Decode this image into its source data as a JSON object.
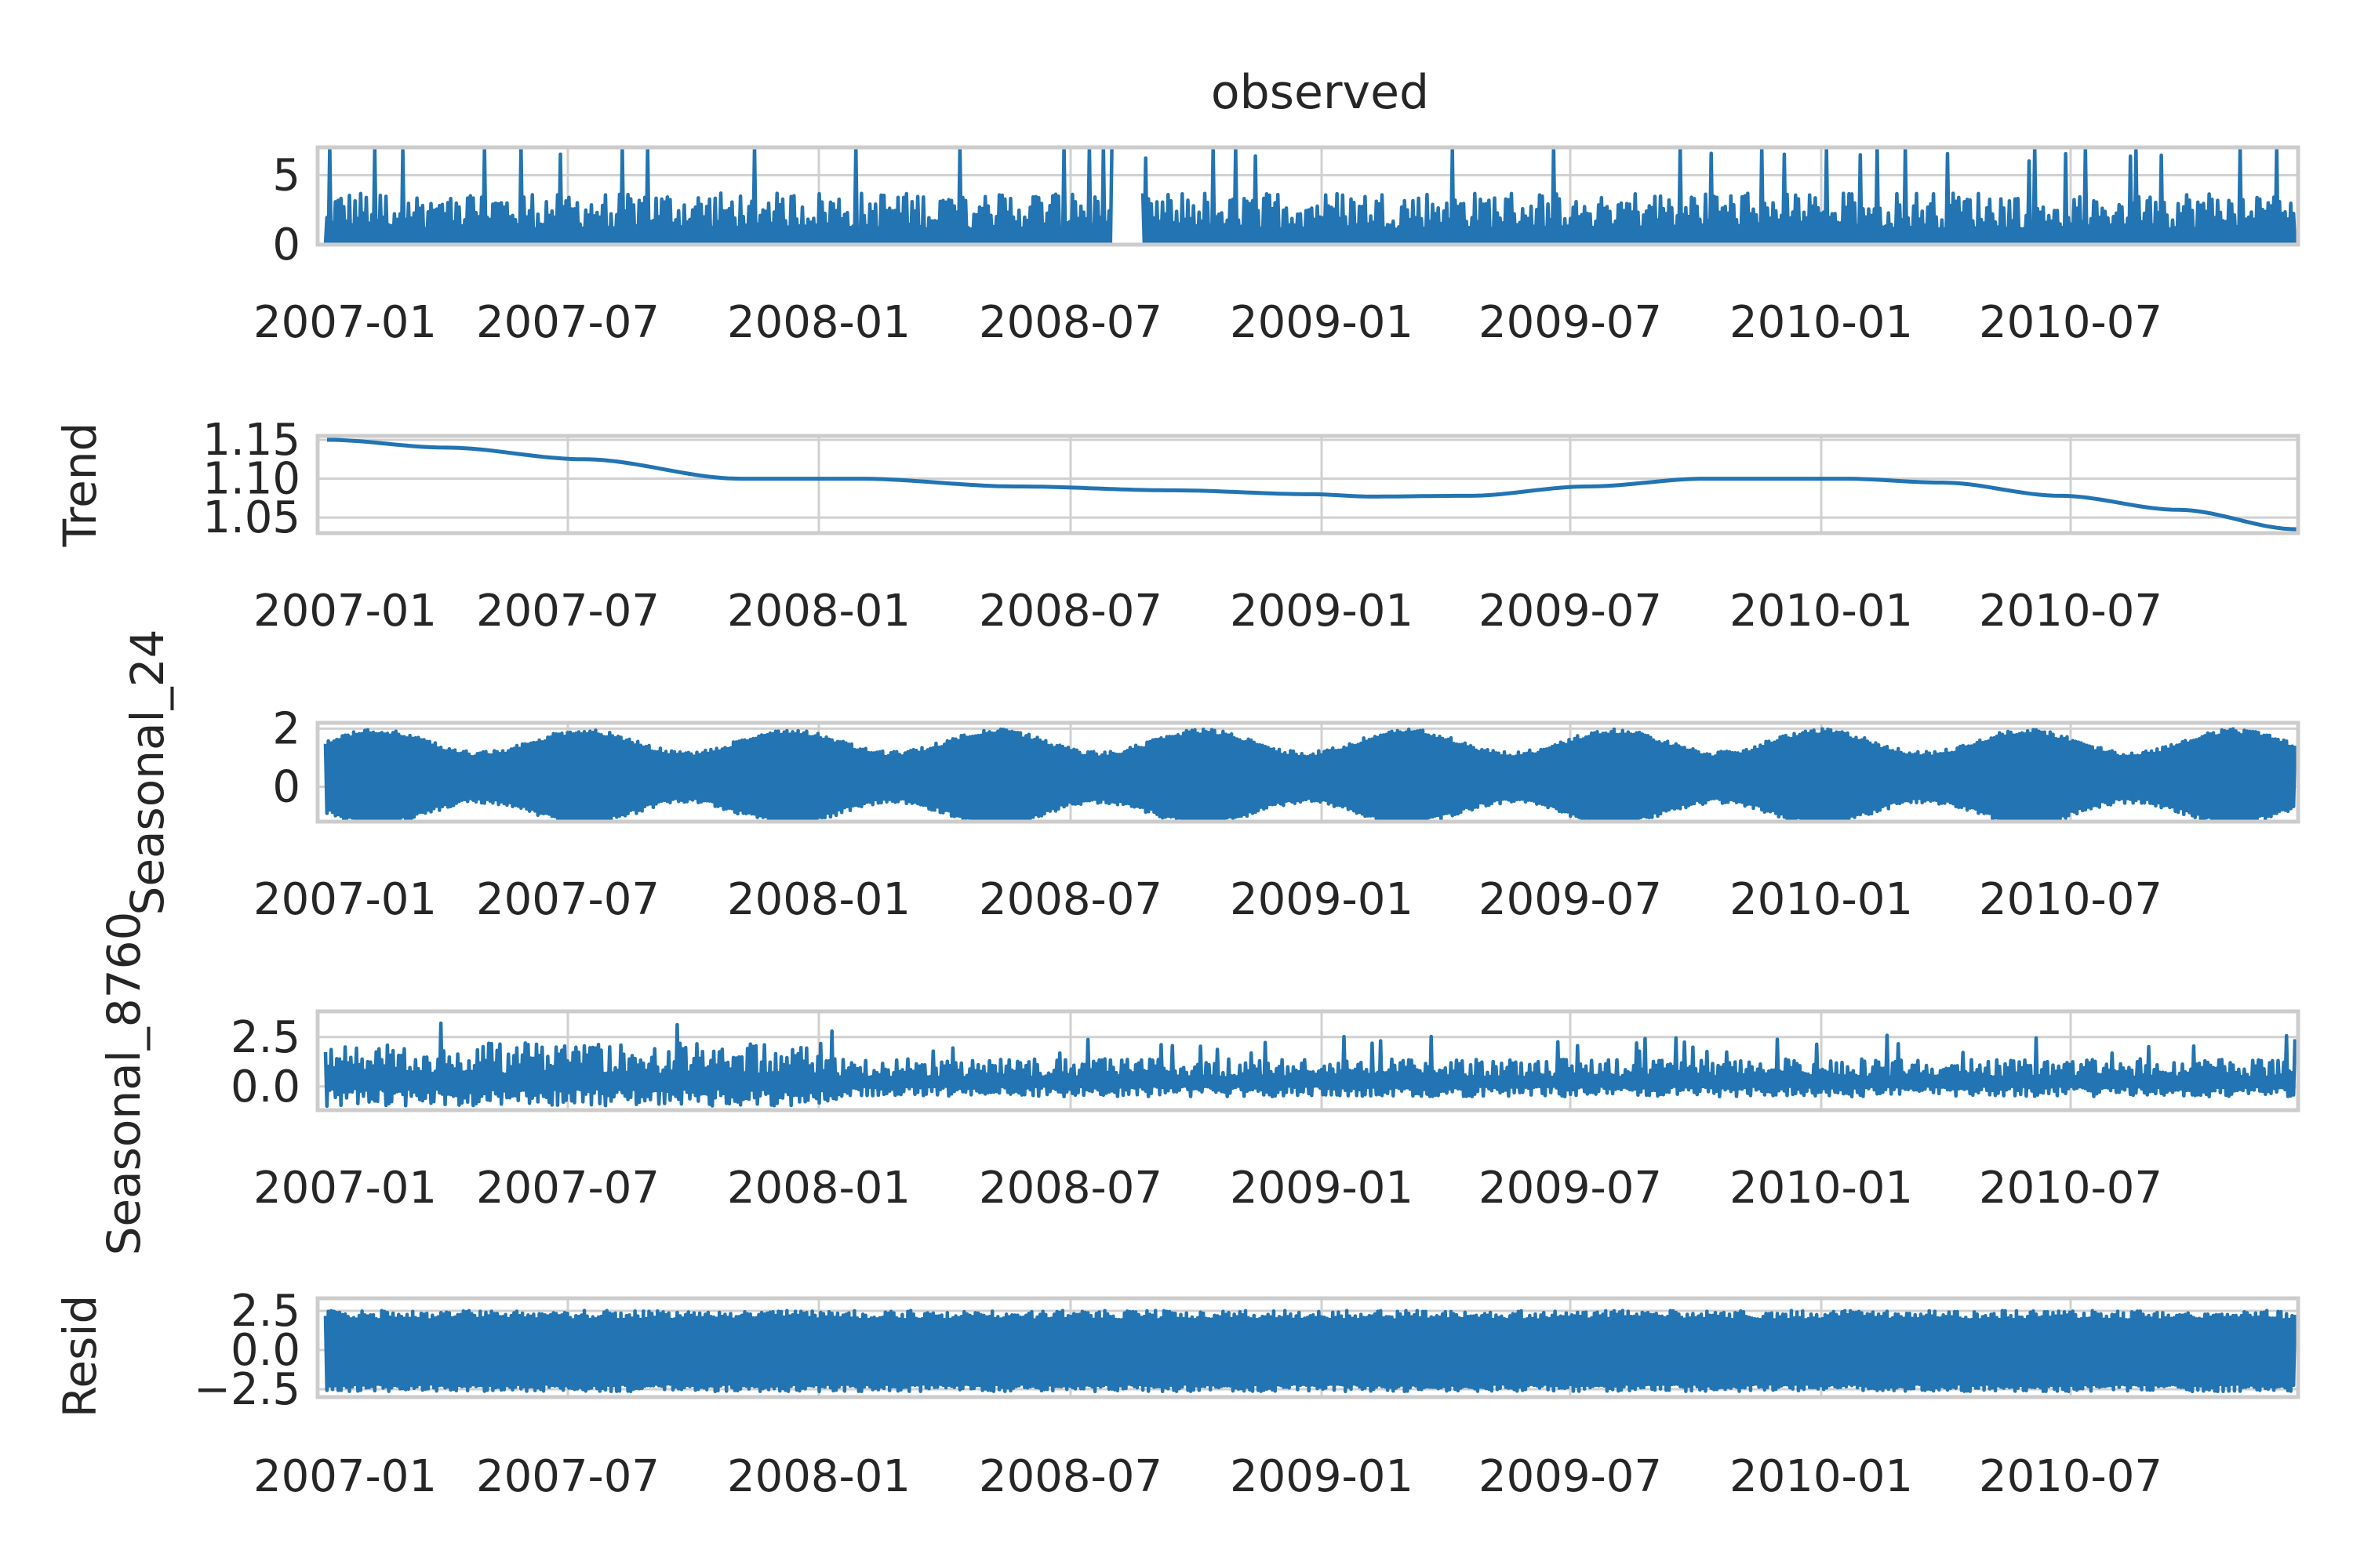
{
  "chart_data": {
    "type": "line",
    "title": "observed",
    "x_tick_labels": [
      "2007-01",
      "2007-07",
      "2008-01",
      "2008-07",
      "2009-01",
      "2009-07",
      "2010-01",
      "2010-07"
    ],
    "x_range": [
      "2007-01",
      "2010-12"
    ],
    "colors": {
      "series": "#2274b2",
      "grid": "#d0d0d0",
      "frame": "#cccccc",
      "text": "#262626"
    },
    "panels": [
      {
        "name": "observed",
        "ylabel": "",
        "ylim": [
          0,
          7
        ],
        "yticks": [
          0,
          5
        ],
        "ytick_labels": [
          "0",
          "5"
        ],
        "style": "noisy-positive",
        "base": 1.1,
        "amplitude": 2.8,
        "gap": [
          "2008-08",
          "2008-09"
        ]
      },
      {
        "name": "trend",
        "ylabel": "Trend",
        "ylim": [
          1.03,
          1.155
        ],
        "yticks": [
          1.05,
          1.1,
          1.15
        ],
        "ytick_labels": [
          "1.05",
          "1.10",
          "1.15"
        ],
        "style": "smooth",
        "points": [
          {
            "t": 0.0,
            "v": 1.15
          },
          {
            "t": 0.06,
            "v": 1.14
          },
          {
            "t": 0.13,
            "v": 1.125
          },
          {
            "t": 0.21,
            "v": 1.1
          },
          {
            "t": 0.27,
            "v": 1.1
          },
          {
            "t": 0.35,
            "v": 1.09
          },
          {
            "t": 0.43,
            "v": 1.085
          },
          {
            "t": 0.5,
            "v": 1.08
          },
          {
            "t": 0.53,
            "v": 1.077
          },
          {
            "t": 0.58,
            "v": 1.078
          },
          {
            "t": 0.64,
            "v": 1.09
          },
          {
            "t": 0.7,
            "v": 1.1
          },
          {
            "t": 0.77,
            "v": 1.1
          },
          {
            "t": 0.82,
            "v": 1.095
          },
          {
            "t": 0.88,
            "v": 1.078
          },
          {
            "t": 0.94,
            "v": 1.06
          },
          {
            "t": 1.0,
            "v": 1.035
          }
        ]
      },
      {
        "name": "seasonal_24",
        "ylabel": "Seasonal_24",
        "ylim": [
          -1.2,
          2.2
        ],
        "yticks": [
          0,
          2
        ],
        "ytick_labels": [
          "0",
          "2"
        ],
        "style": "band",
        "base": 0.3,
        "amplitude": 1.3
      },
      {
        "name": "seasonal_8760",
        "ylabel": "Seasonal_8760",
        "ylim": [
          -1.2,
          3.8
        ],
        "yticks": [
          0.0,
          2.5
        ],
        "ytick_labels": [
          "0.0",
          "2.5"
        ],
        "style": "noisy-band",
        "base": 0.2,
        "amplitude": 1.6
      },
      {
        "name": "resid",
        "ylabel": "Resid",
        "ylim": [
          -3.0,
          3.3
        ],
        "yticks": [
          -2.5,
          0.0,
          2.5
        ],
        "ytick_labels": [
          "−2.5",
          "0.0",
          "2.5"
        ],
        "style": "dense-band",
        "base": 0.0,
        "amplitude": 2.4
      }
    ]
  }
}
